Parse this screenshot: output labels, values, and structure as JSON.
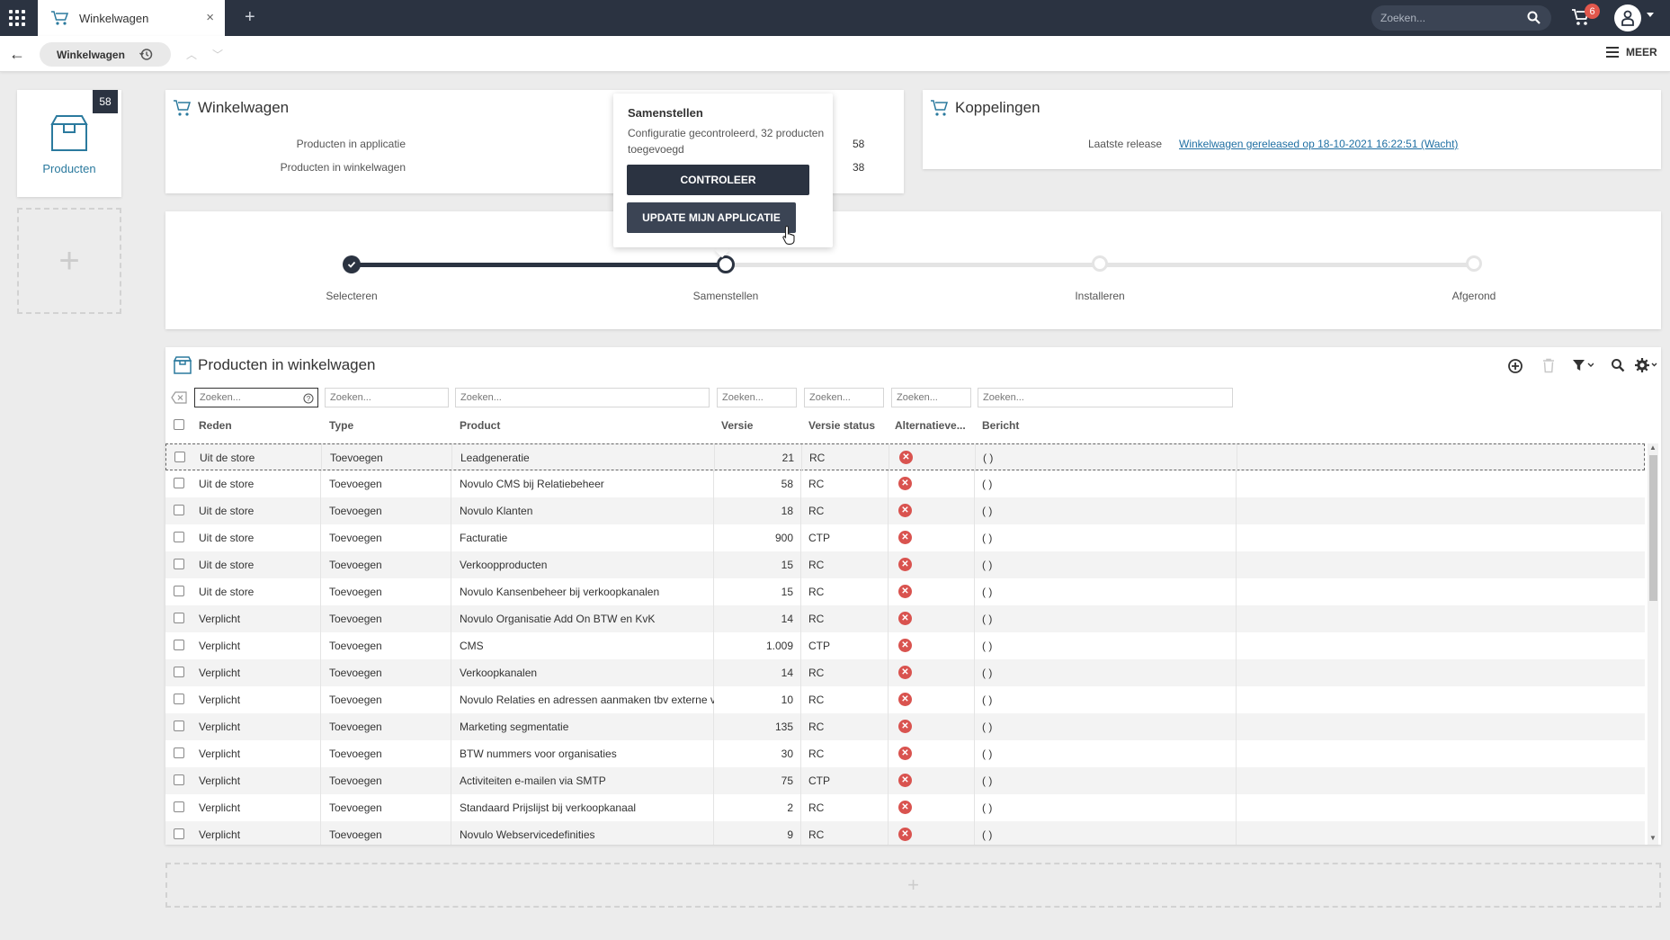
{
  "topbar": {
    "tab_title": "Winkelwagen",
    "tab_close": "×",
    "new_tab": "+",
    "search_placeholder": "Zoeken...",
    "cart_count": "6",
    "accent": "#2b3341"
  },
  "breadcrumb": {
    "title": "Winkelwagen",
    "back": "←",
    "up": "︿",
    "down": "﹀",
    "more_label": "MEER"
  },
  "sidebar": {
    "products_label": "Producten",
    "products_count": "58",
    "add": "+"
  },
  "cart_panel": {
    "title": "Winkelwagen",
    "rows": [
      {
        "label": "Producten in applicatie",
        "value": "58"
      },
      {
        "label": "Producten in winkelwagen",
        "value": "38"
      }
    ]
  },
  "links_panel": {
    "title": "Koppelingen",
    "latest_release_label": "Laatste release",
    "latest_release_value": "Winkelwagen gereleased op 18-10-2021 16:22:51 (Wacht)"
  },
  "popup": {
    "title": "Samenstellen",
    "text": "Configuratie gecontroleerd, 32 producten toegevoegd",
    "check_button": "CONTROLEER",
    "update_button": "UPDATE MIJN APPLICATIE"
  },
  "stepper": {
    "steps": [
      "Selecteren",
      "Samenstellen",
      "Installeren",
      "Afgerond"
    ],
    "current_index": 1
  },
  "table": {
    "title": "Producten in winkelwagen",
    "filter_placeholder": "Zoeken...",
    "columns": [
      "Reden",
      "Type",
      "Product",
      "Versie",
      "Versie status",
      "Alternatieve...",
      "Bericht"
    ],
    "rows": [
      [
        "Uit de store",
        "Toevoegen",
        "Leadgeneratie",
        "21",
        "RC",
        "x",
        "( )"
      ],
      [
        "Uit de store",
        "Toevoegen",
        "Novulo CMS bij Relatiebeheer",
        "58",
        "RC",
        "x",
        "( )"
      ],
      [
        "Uit de store",
        "Toevoegen",
        "Novulo Klanten",
        "18",
        "RC",
        "x",
        "( )"
      ],
      [
        "Uit de store",
        "Toevoegen",
        "Facturatie",
        "900",
        "CTP",
        "x",
        "( )"
      ],
      [
        "Uit de store",
        "Toevoegen",
        "Verkoopproducten",
        "15",
        "RC",
        "x",
        "( )"
      ],
      [
        "Uit de store",
        "Toevoegen",
        "Novulo Kansenbeheer bij verkoopkanalen",
        "15",
        "RC",
        "x",
        "( )"
      ],
      [
        "Verplicht",
        "Toevoegen",
        "Novulo Organisatie Add On BTW en KvK",
        "14",
        "RC",
        "x",
        "( )"
      ],
      [
        "Verplicht",
        "Toevoegen",
        "CMS",
        "1.009",
        "CTP",
        "x",
        "( )"
      ],
      [
        "Verplicht",
        "Toevoegen",
        "Verkoopkanalen",
        "14",
        "RC",
        "x",
        "( )"
      ],
      [
        "Verplicht",
        "Toevoegen",
        "Novulo Relaties en adressen aanmaken tbv externe ve",
        "10",
        "RC",
        "x",
        "( )"
      ],
      [
        "Verplicht",
        "Toevoegen",
        "Marketing segmentatie",
        "135",
        "RC",
        "x",
        "( )"
      ],
      [
        "Verplicht",
        "Toevoegen",
        "BTW nummers voor organisaties",
        "30",
        "RC",
        "x",
        "( )"
      ],
      [
        "Verplicht",
        "Toevoegen",
        "Activiteiten e-mailen via SMTP",
        "75",
        "CTP",
        "x",
        "( )"
      ],
      [
        "Verplicht",
        "Toevoegen",
        "Standaard Prijslijst bij verkoopkanaal",
        "2",
        "RC",
        "x",
        "( )"
      ],
      [
        "Verplicht",
        "Toevoegen",
        "Novulo Webservicedefinities",
        "9",
        "RC",
        "x",
        "( )"
      ]
    ]
  },
  "bottom_add": "+"
}
